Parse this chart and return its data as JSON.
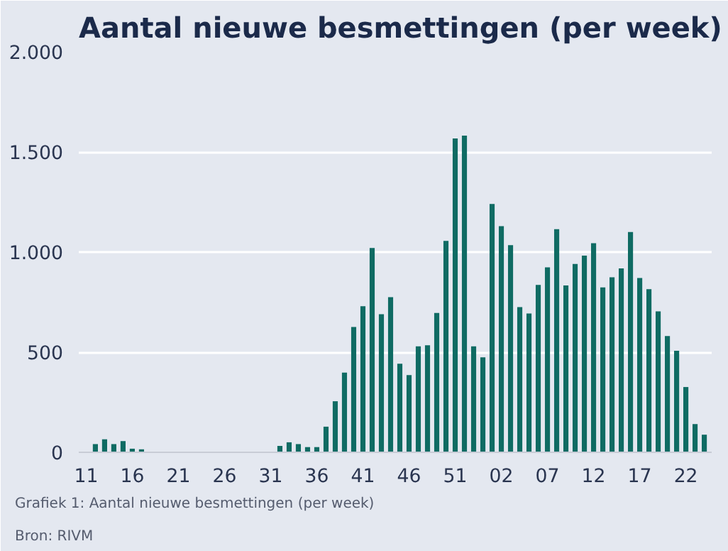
{
  "chart_data": {
    "type": "bar",
    "title": "Aantal nieuwe besmettingen (per week)",
    "categories": [
      "11",
      null,
      null,
      null,
      null,
      "16",
      null,
      null,
      null,
      null,
      "21",
      null,
      null,
      null,
      null,
      "26",
      null,
      null,
      null,
      null,
      "31",
      null,
      null,
      null,
      null,
      "36",
      null,
      null,
      null,
      null,
      "41",
      null,
      null,
      null,
      null,
      "46",
      null,
      null,
      null,
      null,
      "51",
      null,
      null,
      null,
      null,
      "02",
      null,
      null,
      null,
      null,
      "07",
      null,
      null,
      null,
      null,
      "12",
      null,
      null,
      null,
      null,
      "17",
      null,
      null,
      null,
      null,
      "22",
      null,
      null
    ],
    "values": [
      0,
      41,
      65,
      41,
      56,
      18,
      15,
      0,
      0,
      0,
      0,
      0,
      0,
      0,
      0,
      0,
      0,
      0,
      0,
      0,
      0,
      32,
      50,
      41,
      26,
      26,
      128,
      255,
      398,
      626,
      730,
      1020,
      690,
      775,
      442,
      386,
      529,
      535,
      696,
      1056,
      1567,
      1582,
      529,
      474,
      1240,
      1129,
      1035,
      725,
      693,
      836,
      924,
      1114,
      833,
      941,
      982,
      1044,
      824,
      874,
      918,
      1100,
      871,
      815,
      704,
      581,
      507,
      326,
      141,
      88
    ],
    "color": "#0f6b63",
    "ylim": [
      0,
      2000
    ],
    "yticks": [
      0,
      {
        "value": 500,
        "label": "500"
      },
      {
        "value": 1000,
        "label": "1.000"
      },
      {
        "value": 1500,
        "label": "1.500"
      },
      {
        "value": 2000,
        "label": "2.000"
      }
    ],
    "grid": "y",
    "annotations": [
      "Grafiek 1: Aantal nieuwe besmettingen (per week)",
      "Bron: RIVM"
    ]
  }
}
